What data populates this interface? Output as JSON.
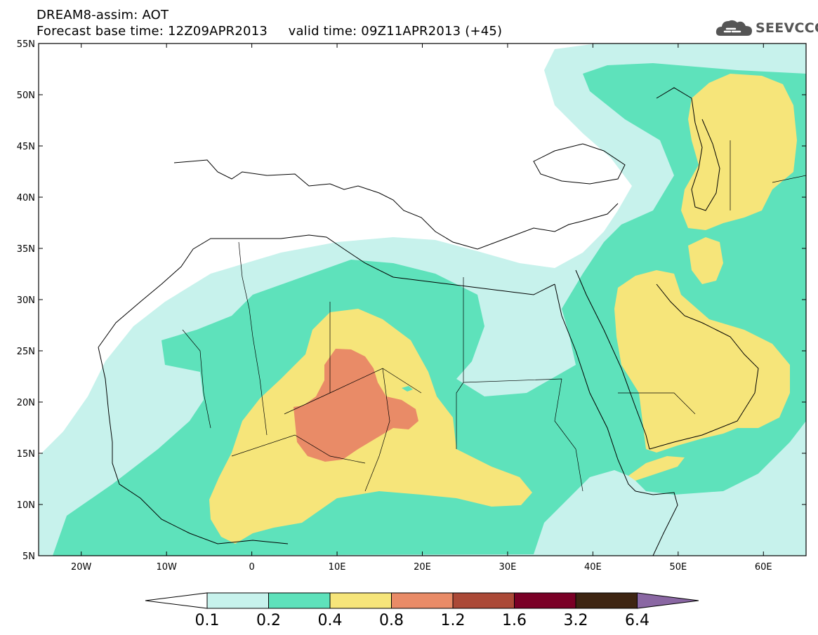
{
  "header": {
    "line1": "DREAM8-assim: AOT",
    "line2": "Forecast base time: 12Z09APR2013     valid time: 09Z11APR2013 (+45)"
  },
  "logo": {
    "text": "SEEVCCC",
    "icon": "cloud-icon"
  },
  "map": {
    "lon_range": [
      -25,
      65
    ],
    "lat_range": [
      5,
      55
    ],
    "x_ticks": [
      "20W",
      "10W",
      "0",
      "10E",
      "20E",
      "30E",
      "40E",
      "50E",
      "60E"
    ],
    "y_ticks": [
      "5N",
      "10N",
      "15N",
      "20N",
      "25N",
      "30N",
      "35N",
      "40N",
      "45N",
      "50N",
      "55N"
    ]
  },
  "colorbar": {
    "labels": [
      "0.1",
      "0.2",
      "0.4",
      "0.8",
      "1.2",
      "1.6",
      "3.2",
      "6.4"
    ],
    "colors": [
      "#ffffff",
      "#c7f2ec",
      "#5ee2bb",
      "#f6e57a",
      "#e98b67",
      "#ab4937",
      "#7a0026",
      "#3e2512",
      "#8a67a3"
    ]
  }
}
